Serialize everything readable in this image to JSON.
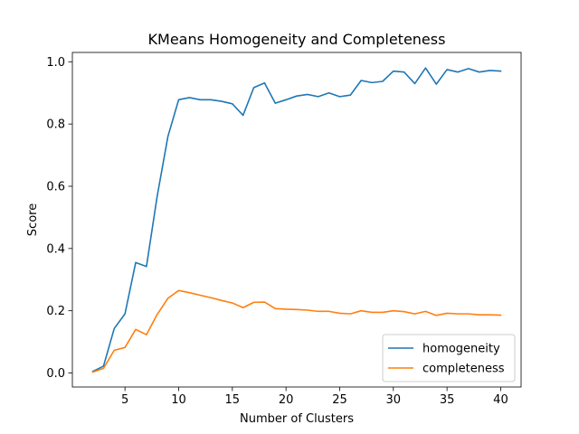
{
  "chart_data": {
    "type": "line",
    "title": "KMeans Homogeneity and Completeness",
    "xlabel": "Number of Clusters",
    "ylabel": "Score",
    "xlim": [
      0.1,
      41.9
    ],
    "ylim": [
      -0.045,
      1.03
    ],
    "xticks": [
      5,
      10,
      15,
      20,
      25,
      30,
      35,
      40
    ],
    "yticks": [
      0.0,
      0.2,
      0.4,
      0.6,
      0.8,
      1.0
    ],
    "ytick_labels": [
      "0.0",
      "0.2",
      "0.4",
      "0.6",
      "0.8",
      "1.0"
    ],
    "grid": false,
    "legend_position": "lower-right",
    "x": [
      2,
      3,
      4,
      5,
      6,
      7,
      8,
      9,
      10,
      11,
      12,
      13,
      14,
      15,
      16,
      17,
      18,
      19,
      20,
      21,
      22,
      23,
      24,
      25,
      26,
      27,
      28,
      29,
      30,
      31,
      32,
      33,
      34,
      35,
      36,
      37,
      38,
      39,
      40
    ],
    "series": [
      {
        "name": "homogeneity",
        "color": "#1f77b4",
        "values": [
          0.005,
          0.022,
          0.143,
          0.19,
          0.355,
          0.342,
          0.568,
          0.76,
          0.878,
          0.885,
          0.878,
          0.878,
          0.873,
          0.865,
          0.828,
          0.917,
          0.932,
          0.867,
          0.878,
          0.89,
          0.895,
          0.888,
          0.9,
          0.888,
          0.893,
          0.94,
          0.933,
          0.937,
          0.97,
          0.967,
          0.93,
          0.98,
          0.928,
          0.975,
          0.967,
          0.978,
          0.967,
          0.972,
          0.97
        ]
      },
      {
        "name": "completeness",
        "color": "#ff7f0e",
        "values": [
          0.003,
          0.015,
          0.073,
          0.082,
          0.14,
          0.123,
          0.188,
          0.24,
          0.265,
          0.258,
          0.25,
          0.242,
          0.233,
          0.225,
          0.21,
          0.227,
          0.228,
          0.207,
          0.205,
          0.204,
          0.202,
          0.198,
          0.198,
          0.192,
          0.19,
          0.2,
          0.195,
          0.195,
          0.2,
          0.197,
          0.19,
          0.198,
          0.185,
          0.192,
          0.19,
          0.19,
          0.187,
          0.187,
          0.186
        ]
      }
    ]
  }
}
